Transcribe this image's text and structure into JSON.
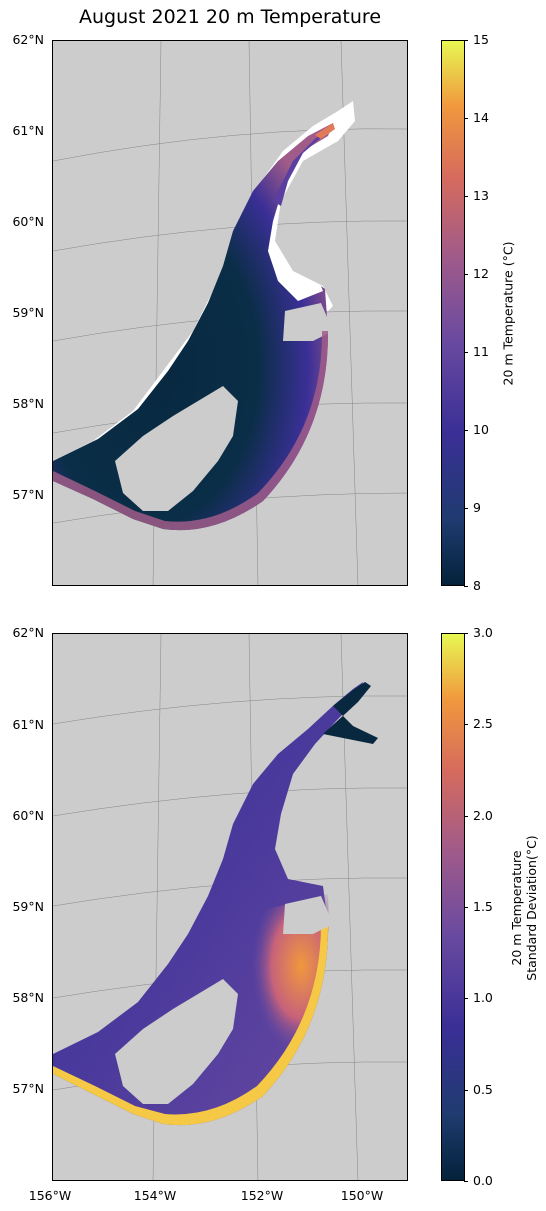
{
  "title": "August 2021 20 m Temperature",
  "lat_labels": [
    "62°N",
    "61°N",
    "60°N",
    "59°N",
    "58°N",
    "57°N"
  ],
  "lon_labels": [
    "156°W",
    "154°W",
    "152°W",
    "150°W"
  ],
  "panels": [
    {
      "name": "temperature",
      "colorbar": {
        "label": "20 m Temperature (°C)",
        "ticks": [
          "15",
          "14",
          "13",
          "12",
          "11",
          "10",
          "9",
          "8"
        ],
        "range": [
          8,
          15
        ]
      }
    },
    {
      "name": "std-dev",
      "colorbar": {
        "label_line1": "20 m Temperature",
        "label_line2": "Standard Deviation(°C)",
        "ticks": [
          "3.0",
          "2.5",
          "2.0",
          "1.5",
          "1.0",
          "0.5",
          "0.0"
        ],
        "range": [
          0,
          3
        ]
      }
    }
  ],
  "colors": {
    "land": "#cccccc",
    "no_data": "#ffffff",
    "cmap_low": "#03223a",
    "cmap_mid": "#3a2f96",
    "cmap_high": "#e8f853"
  }
}
